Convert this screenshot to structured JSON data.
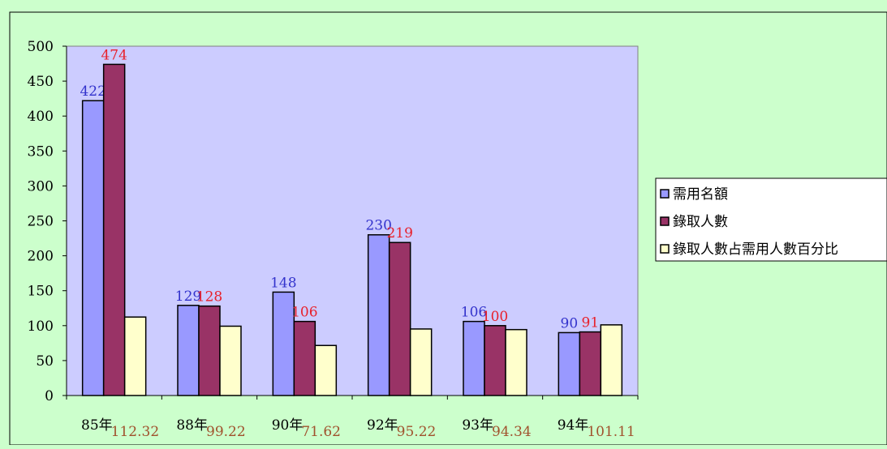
{
  "chart_data": {
    "type": "bar",
    "categories": [
      "85年",
      "88年",
      "90年",
      "92年",
      "93年",
      "94年"
    ],
    "series": [
      {
        "name": "需用名額",
        "values": [
          422,
          129,
          148,
          230,
          106,
          90
        ],
        "color": "#9999ff",
        "show_labels": true,
        "label_color": "#3333cc"
      },
      {
        "name": "錄取人數",
        "values": [
          474,
          128,
          106,
          219,
          100,
          91
        ],
        "color": "#993366",
        "show_labels": true,
        "label_color": "#e8202a"
      },
      {
        "name": "錄取人數占需用人數百分比",
        "values": [
          112.32,
          99.22,
          71.62,
          95.22,
          94.34,
          101.11
        ],
        "color": "#ffffcc",
        "show_labels": false
      }
    ],
    "category_annotations": [
      "112.32",
      "99.22",
      "71.62",
      "95.22",
      "94.34",
      "101.11"
    ],
    "annotation_color": "#a0522d",
    "y_ticks": [
      0,
      50,
      100,
      150,
      200,
      250,
      300,
      350,
      400,
      450,
      500
    ],
    "ylim": [
      0,
      500
    ],
    "plot_background": "#ccccff",
    "page_background": "#ccffcc",
    "legend_position": "right",
    "grid": false
  }
}
